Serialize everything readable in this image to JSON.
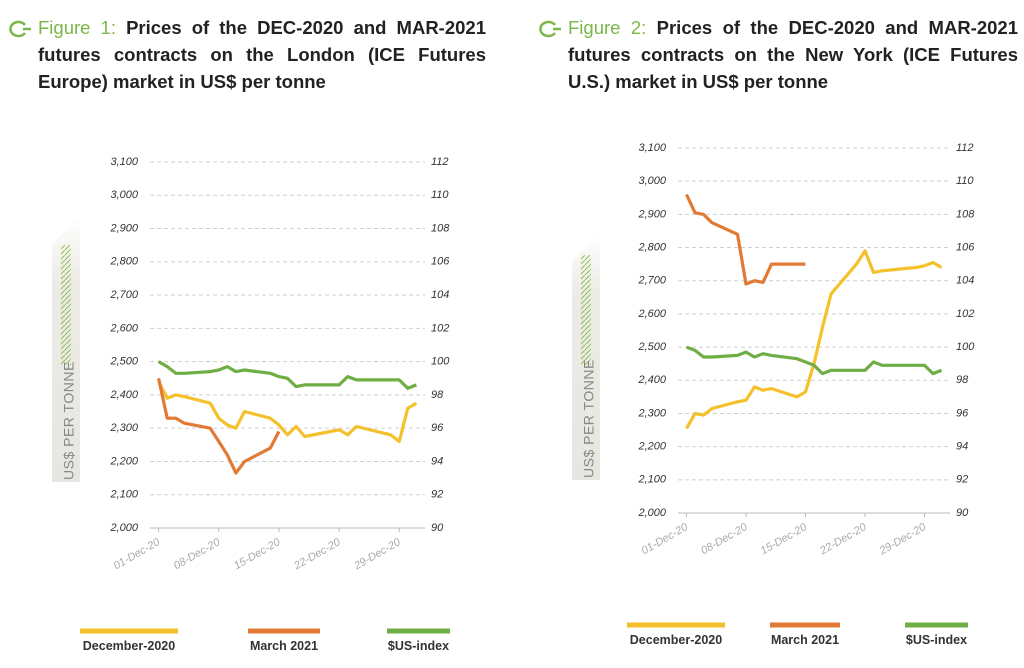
{
  "chart_data": [
    {
      "type": "line",
      "figure_label": "Figure 1:",
      "title": "Prices of the DEC-2020 and MAR-2021 futures contracts on the London (ICE Futures Europe) market in US$ per tonne",
      "ylabel": "US$ PER TONNE",
      "x": [
        "2020-12-01",
        "2020-12-02",
        "2020-12-03",
        "2020-12-04",
        "2020-12-07",
        "2020-12-08",
        "2020-12-09",
        "2020-12-10",
        "2020-12-11",
        "2020-12-14",
        "2020-12-15",
        "2020-12-16",
        "2020-12-17",
        "2020-12-18",
        "2020-12-21",
        "2020-12-22",
        "2020-12-23",
        "2020-12-24",
        "2020-12-28",
        "2020-12-29",
        "2020-12-30",
        "2020-12-31"
      ],
      "xlim": [
        "2020-11-30",
        "2021-01-01"
      ],
      "xticks": [
        {
          "value": "2020-12-01",
          "label": "01-Dec-20"
        },
        {
          "value": "2020-12-08",
          "label": "08-Dec-20"
        },
        {
          "value": "2020-12-15",
          "label": "15-Dec-20"
        },
        {
          "value": "2020-12-22",
          "label": "22-Dec-20"
        },
        {
          "value": "2020-12-29",
          "label": "29-Dec-20"
        }
      ],
      "ylim": [
        2000,
        3100
      ],
      "yticks": [
        {
          "value": 2000,
          "label": "2,000"
        },
        {
          "value": 2100,
          "label": "2,100"
        },
        {
          "value": 2200,
          "label": "2,200"
        },
        {
          "value": 2300,
          "label": "2,300"
        },
        {
          "value": 2400,
          "label": "2,400"
        },
        {
          "value": 2500,
          "label": "2,500"
        },
        {
          "value": 2600,
          "label": "2,600"
        },
        {
          "value": 2700,
          "label": "2,700"
        },
        {
          "value": 2800,
          "label": "2,800"
        },
        {
          "value": 2900,
          "label": "2,900"
        },
        {
          "value": 3000,
          "label": "3,000"
        },
        {
          "value": 3100,
          "label": "3,100"
        }
      ],
      "y2lim": [
        90,
        112
      ],
      "y2ticks": [
        90,
        92,
        94,
        96,
        98,
        100,
        102,
        104,
        106,
        108,
        110,
        112
      ],
      "grid": true,
      "series": [
        {
          "name": "December-2020",
          "color": "#f4c12c",
          "values": [
            2440,
            2390,
            2400,
            2395,
            2375,
            2330,
            2310,
            2300,
            2350,
            2330,
            2310,
            2280,
            2305,
            2275,
            2290,
            2295,
            2280,
            2305,
            2280,
            2260,
            2360,
            2375
          ]
        },
        {
          "name": "March 2021",
          "color": "#e27a36",
          "values": [
            2450,
            2330,
            2330,
            2315,
            2300,
            2260,
            2220,
            2165,
            2200,
            2240,
            2290,
            null,
            null,
            null,
            null,
            null,
            null,
            null,
            null,
            null,
            null,
            null
          ]
        },
        {
          "name": "$US-index",
          "color": "#6fae45",
          "axis": "y2",
          "values": [
            100,
            99.7,
            99.3,
            99.3,
            99.4,
            99.5,
            99.7,
            99.4,
            99.5,
            99.3,
            99.1,
            99.0,
            98.5,
            98.6,
            98.6,
            98.6,
            99.1,
            98.9,
            98.9,
            98.9,
            98.4,
            98.6
          ]
        }
      ]
    },
    {
      "type": "line",
      "figure_label": "Figure 2:",
      "title": "Prices of the DEC-2020 and MAR-2021 futures contracts on the New York (ICE Futures U.S.) market in US$ per tonne",
      "ylabel": "US$ PER TONNE",
      "x": [
        "2020-12-01",
        "2020-12-02",
        "2020-12-03",
        "2020-12-04",
        "2020-12-07",
        "2020-12-08",
        "2020-12-09",
        "2020-12-10",
        "2020-12-11",
        "2020-12-14",
        "2020-12-15",
        "2020-12-16",
        "2020-12-17",
        "2020-12-18",
        "2020-12-21",
        "2020-12-22",
        "2020-12-23",
        "2020-12-24",
        "2020-12-28",
        "2020-12-29",
        "2020-12-30",
        "2020-12-31"
      ],
      "xlim": [
        "2020-11-30",
        "2021-01-01"
      ],
      "xticks": [
        {
          "value": "2020-12-01",
          "label": "01-Dec-20"
        },
        {
          "value": "2020-12-08",
          "label": "08-Dec-20"
        },
        {
          "value": "2020-12-15",
          "label": "15-Dec-20"
        },
        {
          "value": "2020-12-22",
          "label": "22-Dec-20"
        },
        {
          "value": "2020-12-29",
          "label": "29-Dec-20"
        }
      ],
      "ylim": [
        2000,
        3100
      ],
      "yticks": [
        {
          "value": 2000,
          "label": "2,000"
        },
        {
          "value": 2100,
          "label": "2,100"
        },
        {
          "value": 2200,
          "label": "2,200"
        },
        {
          "value": 2300,
          "label": "2,300"
        },
        {
          "value": 2400,
          "label": "2,400"
        },
        {
          "value": 2500,
          "label": "2,500"
        },
        {
          "value": 2600,
          "label": "2,600"
        },
        {
          "value": 2700,
          "label": "2,700"
        },
        {
          "value": 2800,
          "label": "2,800"
        },
        {
          "value": 2900,
          "label": "2,900"
        },
        {
          "value": 3000,
          "label": "3,000"
        },
        {
          "value": 3100,
          "label": "3,100"
        }
      ],
      "y2lim": [
        90,
        112
      ],
      "y2ticks": [
        90,
        92,
        94,
        96,
        98,
        100,
        102,
        104,
        106,
        108,
        110,
        112
      ],
      "grid": true,
      "series": [
        {
          "name": "December-2020",
          "color": "#f4c12c",
          "values": [
            2255,
            2300,
            2295,
            2315,
            2335,
            2340,
            2380,
            2370,
            2375,
            2350,
            2365,
            2450,
            2560,
            2660,
            2750,
            2790,
            2725,
            2730,
            2740,
            2745,
            2755,
            2740
          ]
        },
        {
          "name": "March 2021",
          "color": "#e27a36",
          "values": [
            2960,
            2905,
            2900,
            2875,
            2840,
            2690,
            2700,
            2695,
            2750,
            2750,
            2750,
            null,
            null,
            null,
            null,
            null,
            null,
            null,
            null,
            null,
            null,
            null
          ]
        },
        {
          "name": "$US-index",
          "color": "#6fae45",
          "axis": "y2",
          "values": [
            100,
            99.8,
            99.4,
            99.4,
            99.5,
            99.7,
            99.4,
            99.6,
            99.5,
            99.3,
            99.1,
            98.9,
            98.4,
            98.6,
            98.6,
            98.6,
            99.1,
            98.9,
            98.9,
            98.9,
            98.4,
            98.6
          ]
        }
      ]
    }
  ]
}
